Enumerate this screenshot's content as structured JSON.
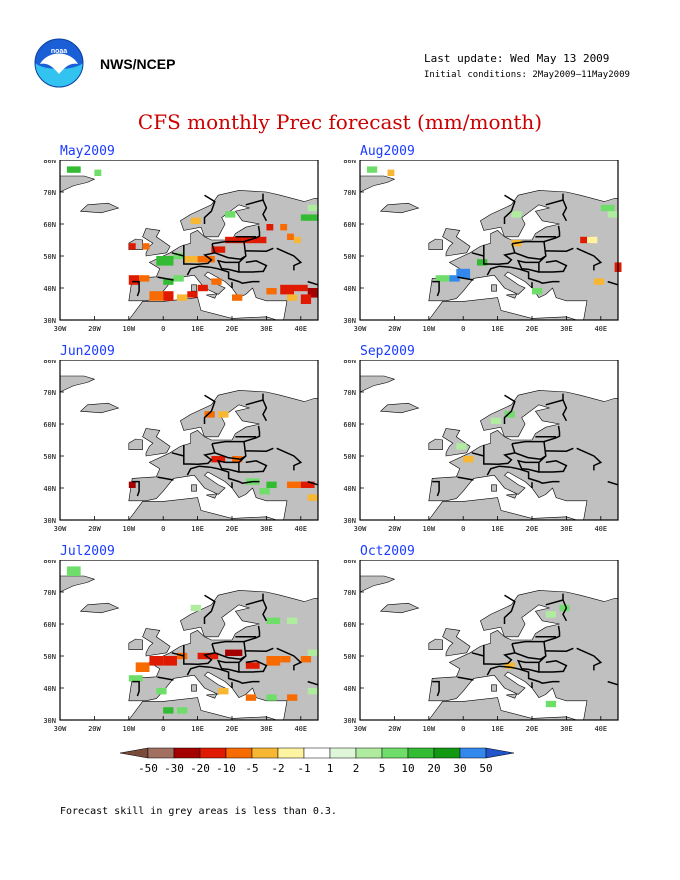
{
  "header": {
    "org": "NWS/NCEP",
    "last_update": "Last update: Wed May 13 2009",
    "initial_conditions": "Initial conditions: 2May2009–11May2009",
    "title": "CFS monthly Prec forecast (mm/month)"
  },
  "panels": [
    {
      "month": "May2009"
    },
    {
      "month": "Aug2009"
    },
    {
      "month": "Jun2009"
    },
    {
      "month": "Sep2009"
    },
    {
      "month": "Jul2009"
    },
    {
      "month": "Oct2009"
    }
  ],
  "axes": {
    "lat_labels": [
      "80N",
      "70N",
      "60N",
      "50N",
      "40N",
      "30N"
    ],
    "lon_labels": [
      "30W",
      "20W",
      "10W",
      "0",
      "10E",
      "20E",
      "30E",
      "40E"
    ]
  },
  "legend": {
    "labels": [
      "-50",
      "-30",
      "-20",
      "-10",
      "-5",
      "-2",
      "-1",
      "1",
      "2",
      "5",
      "10",
      "20",
      "30",
      "50"
    ],
    "colors": [
      "#7a4a3a",
      "#a27060",
      "#a40000",
      "#e01a00",
      "#f76b00",
      "#f7b733",
      "#fdf3a0",
      "#ffffff",
      "#ddf7d8",
      "#b0eca0",
      "#6fdd6a",
      "#33bb33",
      "#129912",
      "#3388ee",
      "#2255cc"
    ]
  },
  "footnote": "Forecast skill in grey areas is less than 0.3.",
  "colors": {
    "land_low_skill": "#c0c0c0",
    "title": "#cc0000",
    "panel_title": "#1a3cff"
  }
}
